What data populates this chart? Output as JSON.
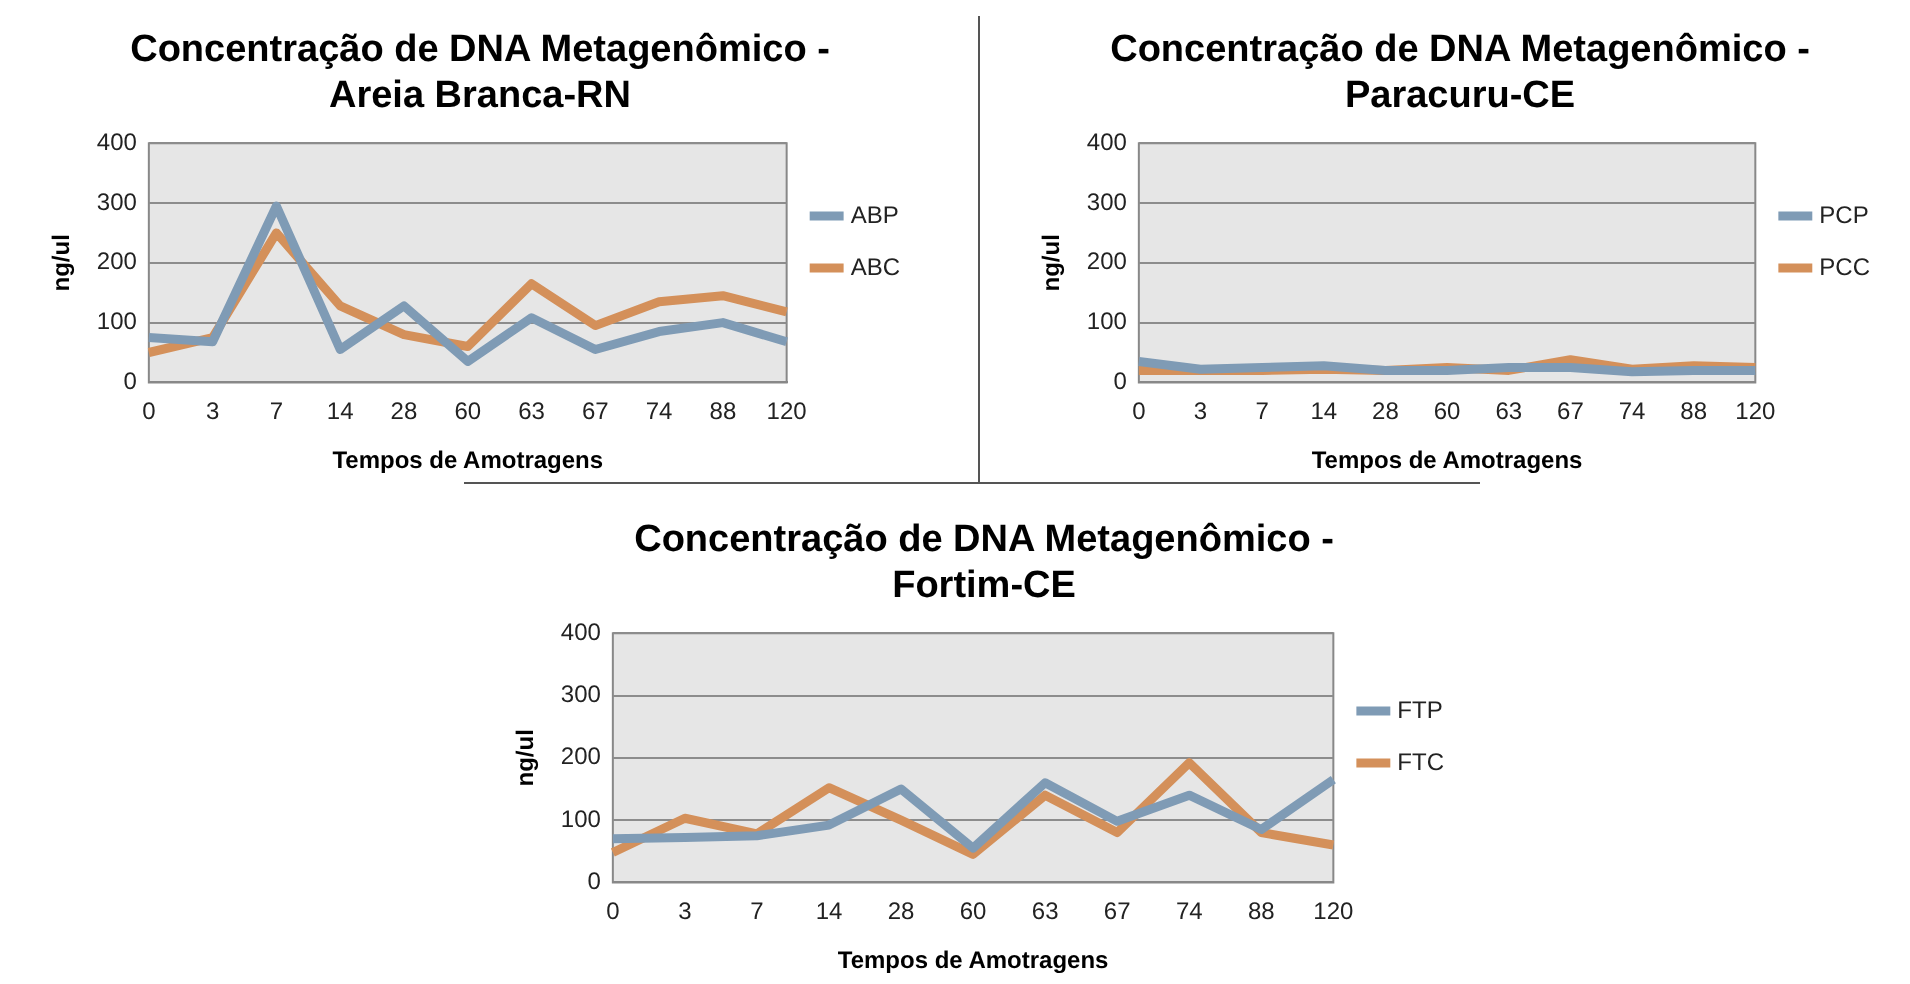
{
  "chart_data": [
    {
      "type": "line",
      "title": "Concentração de DNA Metagenômico - Areia Branca-RN",
      "xlabel": "Tempos de Amotragens",
      "ylabel": "ng/ul",
      "categories": [
        "0",
        "3",
        "7",
        "14",
        "28",
        "60",
        "63",
        "67",
        "74",
        "88",
        "120"
      ],
      "series": [
        {
          "name": "ABP",
          "color": "#7f9bb5",
          "values": [
            75,
            68,
            295,
            55,
            128,
            35,
            108,
            55,
            85,
            100,
            68
          ]
        },
        {
          "name": "ABC",
          "color": "#d4905a",
          "values": [
            50,
            75,
            250,
            128,
            80,
            60,
            165,
            95,
            135,
            145,
            118
          ]
        }
      ],
      "ylim": [
        0,
        400
      ],
      "yticks": [
        0,
        100,
        200,
        300,
        400
      ],
      "grid": "y",
      "legend": "right",
      "marker": "none"
    },
    {
      "type": "line",
      "title": "Concentração de DNA Metagenômico - Paracuru-CE",
      "xlabel": "Tempos de Amotragens",
      "ylabel": "ng/ul",
      "categories": [
        "0",
        "3",
        "7",
        "14",
        "28",
        "60",
        "63",
        "67",
        "74",
        "88",
        "120"
      ],
      "series": [
        {
          "name": "PCP",
          "color": "#7f9bb5",
          "values": [
            35,
            22,
            25,
            28,
            20,
            20,
            25,
            25,
            18,
            20,
            20
          ]
        },
        {
          "name": "PCC",
          "color": "#d4905a",
          "values": [
            20,
            20,
            20,
            22,
            20,
            25,
            20,
            38,
            22,
            28,
            25
          ]
        }
      ],
      "ylim": [
        0,
        400
      ],
      "yticks": [
        0,
        100,
        200,
        300,
        400
      ],
      "grid": "y",
      "legend": "right",
      "marker": "none"
    },
    {
      "type": "line",
      "title": "Concentração de DNA Metagenômico - Fortim-CE",
      "xlabel": "Tempos de Amotragens",
      "ylabel": "ng/ul",
      "categories": [
        "0",
        "3",
        "7",
        "14",
        "28",
        "60",
        "63",
        "67",
        "74",
        "88",
        "120"
      ],
      "series": [
        {
          "name": "FTP",
          "color": "#7f9bb5",
          "values": [
            70,
            72,
            75,
            92,
            150,
            55,
            160,
            98,
            140,
            85,
            165
          ]
        },
        {
          "name": "FTC",
          "color": "#d4905a",
          "values": [
            48,
            103,
            78,
            152,
            100,
            45,
            140,
            80,
            192,
            80,
            60
          ]
        }
      ],
      "ylim": [
        0,
        400
      ],
      "yticks": [
        0,
        100,
        200,
        300,
        400
      ],
      "grid": "y",
      "legend": "right",
      "marker": "none"
    }
  ]
}
